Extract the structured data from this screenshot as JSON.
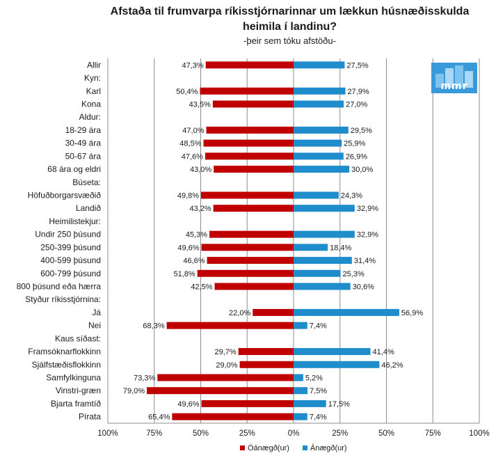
{
  "chart_data": {
    "type": "bar",
    "title_line1": "Afstaða til frumvarpa ríkisstjórnarinnar um lækkun húsnæðisskulda",
    "title_line2": "heimila í landinu?",
    "subtitle": "-þeir sem tóku afstöðu-",
    "x_ticks": [
      "100%",
      "75%",
      "50%",
      "25%",
      "0%",
      "25%",
      "50%",
      "75%",
      "100%"
    ],
    "xlim": [
      -100,
      100
    ],
    "grid": true,
    "legend_position": "bottom-center",
    "colors": {
      "neg": "#c00000",
      "pos": "#1f8dcc"
    },
    "series": [
      {
        "name": "Óánægð(ur)",
        "color": "#c00000"
      },
      {
        "name": "Ánægð(ur)",
        "color": "#1f8dcc"
      }
    ],
    "rows": [
      {
        "label": "Allir",
        "neg": 47.3,
        "pos": 27.5,
        "neg_label": "47,3%",
        "pos_label": "27,5%"
      },
      {
        "label": "Kyn:",
        "header": true
      },
      {
        "label": "Karl",
        "neg": 50.4,
        "pos": 27.9,
        "neg_label": "50,4%",
        "pos_label": "27,9%"
      },
      {
        "label": "Kona",
        "neg": 43.5,
        "pos": 27.0,
        "neg_label": "43,5%",
        "pos_label": "27,0%"
      },
      {
        "label": "Aldur:",
        "header": true
      },
      {
        "label": "18-29 ára",
        "neg": 47.0,
        "pos": 29.5,
        "neg_label": "47,0%",
        "pos_label": "29,5%"
      },
      {
        "label": "30-49 ára",
        "neg": 48.5,
        "pos": 25.9,
        "neg_label": "48,5%",
        "pos_label": "25,9%"
      },
      {
        "label": "50-67 ára",
        "neg": 47.6,
        "pos": 26.9,
        "neg_label": "47,6%",
        "pos_label": "26,9%"
      },
      {
        "label": "68 ára og eldri",
        "neg": 43.0,
        "pos": 30.0,
        "neg_label": "43,0%",
        "pos_label": "30,0%"
      },
      {
        "label": "Búseta:",
        "header": true
      },
      {
        "label": "Höfuðborgarsvæðið",
        "neg": 49.8,
        "pos": 24.3,
        "neg_label": "49,8%",
        "pos_label": "24,3%"
      },
      {
        "label": "Landið",
        "neg": 43.2,
        "pos": 32.9,
        "neg_label": "43,2%",
        "pos_label": "32,9%"
      },
      {
        "label": "Heimilistekjur:",
        "header": true
      },
      {
        "label": "Undir 250 þúsund",
        "neg": 45.3,
        "pos": 32.9,
        "neg_label": "45,3%",
        "pos_label": "32,9%"
      },
      {
        "label": "250-399 þúsund",
        "neg": 49.6,
        "pos": 18.4,
        "neg_label": "49,6%",
        "pos_label": "18,4%"
      },
      {
        "label": "400-599 þúsund",
        "neg": 46.6,
        "pos": 31.4,
        "neg_label": "46,6%",
        "pos_label": "31,4%"
      },
      {
        "label": "600-799 þúsund",
        "neg": 51.8,
        "pos": 25.3,
        "neg_label": "51,8%",
        "pos_label": "25,3%"
      },
      {
        "label": "800 þúsund eða hærra",
        "neg": 42.5,
        "pos": 30.6,
        "neg_label": "42,5%",
        "pos_label": "30,6%"
      },
      {
        "label": "Styður ríkisstjórnina:",
        "header": true
      },
      {
        "label": "Já",
        "neg": 22.0,
        "pos": 56.9,
        "neg_label": "22,0%",
        "pos_label": "56,9%"
      },
      {
        "label": "Nei",
        "neg": 68.3,
        "pos": 7.4,
        "neg_label": "68,3%",
        "pos_label": "7,4%"
      },
      {
        "label": "Kaus síðast:",
        "header": true
      },
      {
        "label": "Framsóknarflokkinn",
        "neg": 29.7,
        "pos": 41.4,
        "neg_label": "29,7%",
        "pos_label": "41,4%"
      },
      {
        "label": "Sjálfstæðisflokkinn",
        "neg": 29.0,
        "pos": 46.2,
        "neg_label": "29,0%",
        "pos_label": "46,2%"
      },
      {
        "label": "Samfylkinguna",
        "neg": 73.3,
        "pos": 5.2,
        "neg_label": "73,3%",
        "pos_label": "5,2%"
      },
      {
        "label": "Vinstri-græn",
        "neg": 79.0,
        "pos": 7.5,
        "neg_label": "79,0%",
        "pos_label": "7,5%"
      },
      {
        "label": "Bjarta framtíð",
        "neg": 49.6,
        "pos": 17.5,
        "neg_label": "49,6%",
        "pos_label": "17,5%"
      },
      {
        "label": "Pírata",
        "neg": 65.4,
        "pos": 7.4,
        "neg_label": "65,4%",
        "pos_label": "7,4%"
      }
    ]
  },
  "logo": {
    "text": "mmr",
    "bg": "#3a9ad9",
    "fg": "#ffffff"
  }
}
